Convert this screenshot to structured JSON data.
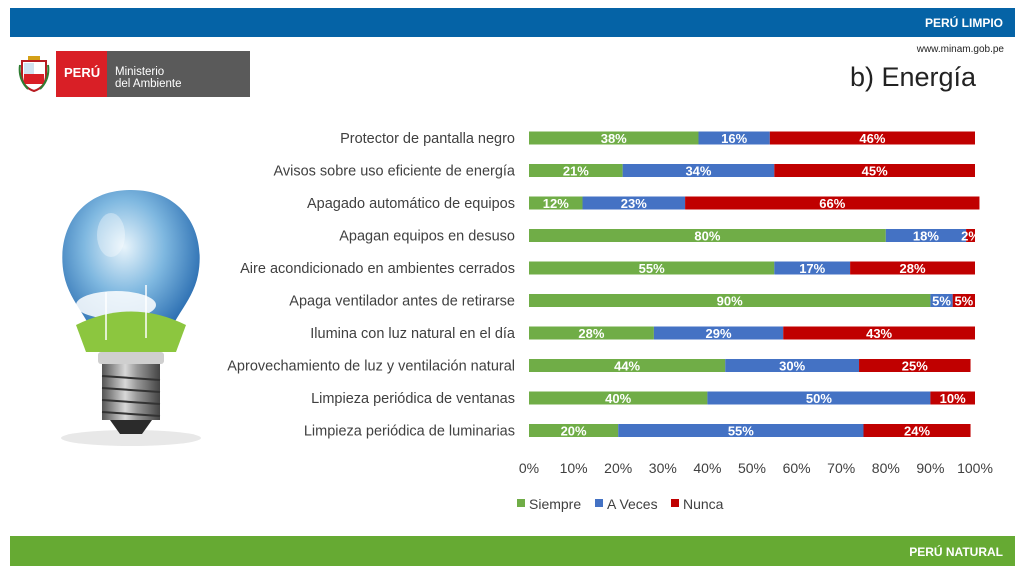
{
  "header": {
    "label": "PERÚ LIMPIO",
    "website": "www.minam.gob.pe",
    "title": "b) Energía"
  },
  "footer": {
    "label": "PERÚ NATURAL"
  },
  "logo": {
    "country": "PERÚ",
    "line1": "Ministerio",
    "line2": "del Ambiente"
  },
  "colors": {
    "header": "#0563a6",
    "footer": "#66aa33",
    "siempre": "#70ad47",
    "a_veces": "#4472c4",
    "nunca": "#c00000"
  },
  "chart_data": {
    "type": "bar",
    "orientation": "horizontal",
    "stacked": true,
    "categories": [
      "Protector de pantalla negro",
      "Avisos sobre uso eficiente de energía",
      "Apagado automático de equipos",
      "Apagan equipos en desuso",
      "Aire acondicionado en ambientes cerrados",
      "Apaga ventilador antes de retirarse",
      "Ilumina con luz natural en el día",
      "Aprovechamiento de luz y ventilación natural",
      "Limpieza periódica de ventanas",
      "Limpieza periódica de luminarias"
    ],
    "series": [
      {
        "name": "Siempre",
        "values": [
          38,
          21,
          12,
          80,
          55,
          90,
          28,
          44,
          40,
          20
        ],
        "labels": [
          "38%",
          "21%",
          "12%",
          "80%",
          "55%",
          "90%",
          "28%",
          "44%",
          "40%",
          "20%"
        ]
      },
      {
        "name": "A Veces",
        "values": [
          16,
          34,
          23,
          18,
          17,
          5,
          29,
          30,
          50,
          55
        ],
        "labels": [
          "16%",
          "34%",
          "23%",
          "18%",
          "17%",
          "5%",
          "29%",
          "30%",
          "50%",
          "55%"
        ]
      },
      {
        "name": "Nunca",
        "values": [
          46,
          45,
          66,
          2,
          28,
          5,
          43,
          25,
          10,
          24
        ],
        "labels": [
          "46%",
          "45%",
          "66%",
          "2%",
          "28%",
          "5%",
          "43%",
          "25%",
          "10%",
          "24%"
        ]
      }
    ],
    "xlim": [
      0,
      100
    ],
    "x_ticks": [
      "0%",
      "10%",
      "20%",
      "30%",
      "40%",
      "50%",
      "60%",
      "70%",
      "80%",
      "90%",
      "100%"
    ],
    "legend_position": "bottom",
    "grid": false
  }
}
